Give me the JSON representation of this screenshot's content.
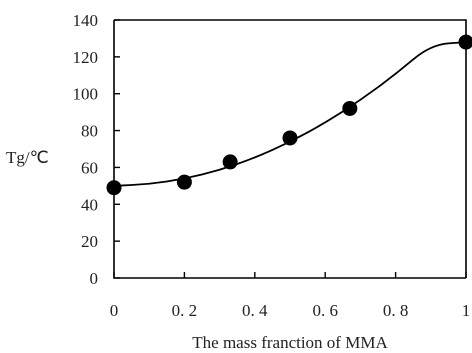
{
  "chart_data": {
    "type": "scatter",
    "xlabel": "The mass franction of MMA",
    "ylabel": "Tg/℃",
    "xlim": [
      0,
      1
    ],
    "ylim": [
      0,
      140
    ],
    "x_ticks": [
      "0",
      "0. 2",
      "0. 4",
      "0. 6",
      "0. 8",
      "1"
    ],
    "y_ticks": [
      "0",
      "20",
      "40",
      "60",
      "80",
      "100",
      "120",
      "140"
    ],
    "x_tick_values": [
      0,
      0.2,
      0.4,
      0.6,
      0.8,
      1
    ],
    "y_tick_values": [
      0,
      20,
      40,
      60,
      80,
      100,
      120,
      140
    ],
    "grid": false,
    "series": [
      {
        "kind": "points",
        "x": [
          0,
          0.2,
          0.33,
          0.5,
          0.67,
          1.0
        ],
        "y": [
          49,
          52,
          63,
          76,
          92,
          128
        ]
      },
      {
        "kind": "fit-curve",
        "x": [
          0,
          0.1,
          0.2,
          0.3,
          0.4,
          0.5,
          0.6,
          0.7,
          0.8,
          0.9,
          1.0
        ],
        "y": [
          50,
          50.9,
          53.8,
          58.5,
          65.2,
          73.8,
          84.2,
          96.5,
          110.6,
          126.6,
          128
        ]
      }
    ],
    "marker_color": "#000000",
    "line_color": "#000000"
  }
}
